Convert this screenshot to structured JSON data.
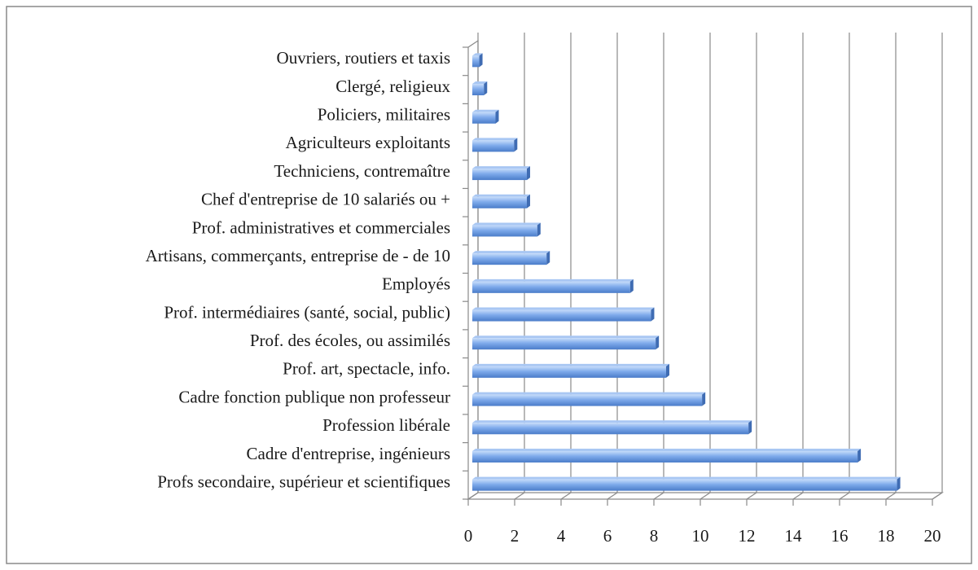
{
  "chart_data": {
    "type": "hbar",
    "orientation": "horizontal",
    "categories": [
      "Profs secondaire, supérieur et scientifiques",
      "Cadre d'entreprise, ingénieurs",
      "Profession libérale",
      "Cadre fonction publique non professeur",
      "Prof. art, spectacle, info.",
      "Prof. des écoles, ou assimilés",
      "Prof. intermédiaires (santé, social, public)",
      "Employés",
      "Artisans, commerçants, entreprise de - de 10",
      "Prof. administratives et  commerciales",
      "Chef d'entreprise de 10 salariés ou +",
      "Techniciens, contremaître",
      "Agriculteurs exploitants",
      "Policiers, militaires",
      "Clergé, religieux",
      "Ouvriers,  routiers et  taxis"
    ],
    "values": [
      18.3,
      16.6,
      11.9,
      9.9,
      8.35,
      7.9,
      7.7,
      6.8,
      3.2,
      2.8,
      2.35,
      2.35,
      1.8,
      1.0,
      0.5,
      0.3
    ],
    "color": "#6f9fe0",
    "xlim": [
      0,
      20
    ],
    "xticks": [
      0,
      2,
      4,
      6,
      8,
      10,
      12,
      14,
      16,
      18,
      20
    ],
    "grid": true
  }
}
